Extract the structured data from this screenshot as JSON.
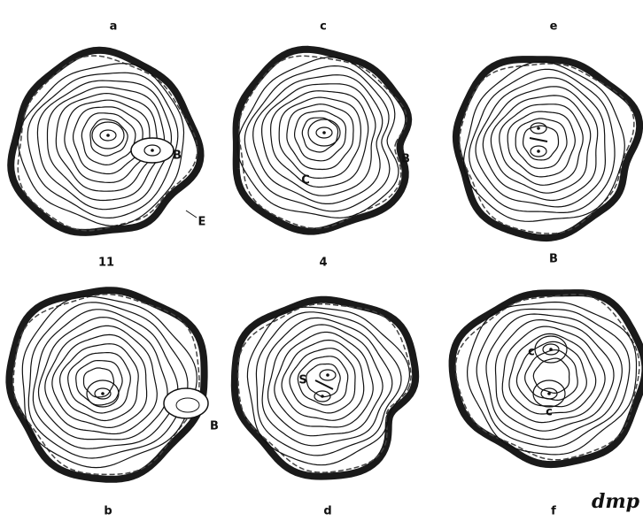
{
  "panels": [
    {
      "label": "a",
      "annotations": [
        "B",
        "E"
      ]
    },
    {
      "label": "c",
      "annotations": [
        "C",
        "B"
      ]
    },
    {
      "label": "e",
      "annotations": []
    },
    {
      "label": "b",
      "annotations": [
        "B"
      ]
    },
    {
      "label": "d",
      "annotations": [
        "S"
      ]
    },
    {
      "label": "f",
      "annotations": [
        "c",
        "c"
      ]
    }
  ],
  "row_labels": [
    "11",
    "4",
    "B"
  ],
  "signature": "dmp"
}
